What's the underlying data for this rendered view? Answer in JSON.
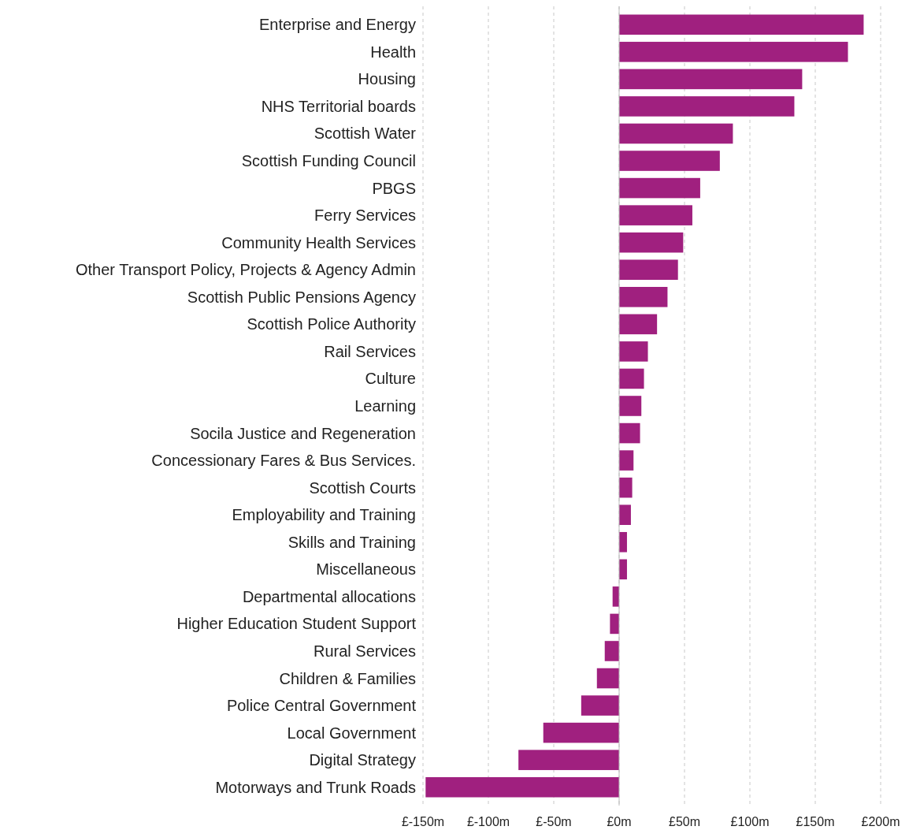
{
  "chart_data": {
    "type": "bar",
    "orientation": "horizontal",
    "categories": [
      "Enterprise and Energy",
      "Health",
      "Housing",
      "NHS Territorial boards",
      "Scottish Water",
      "Scottish Funding Council",
      "PBGS",
      "Ferry Services",
      "Community Health Services",
      "Other Transport Policy, Projects & Agency Admin",
      "Scottish Public Pensions Agency",
      "Scottish Police Authority",
      "Rail Services",
      "Culture",
      "Learning",
      "Socila Justice and Regeneration",
      "Concessionary Fares & Bus Services.",
      "Scottish Courts",
      "Employability and Training",
      "Skills and Training",
      "Miscellaneous",
      "Departmental allocations",
      "Higher Education Student Support",
      "Rural Services",
      "Children & Families",
      "Police Central Government",
      "Local Government",
      "Digital Strategy",
      "Motorways and Trunk Roads"
    ],
    "values": [
      187,
      175,
      140,
      134,
      87,
      77,
      62,
      56,
      49,
      45,
      37,
      29,
      22,
      19,
      17,
      16,
      11,
      10,
      9,
      6,
      6,
      -5,
      -7,
      -11,
      -17,
      -29,
      -58,
      -77,
      -148
    ],
    "color": "#a0207f",
    "xlim": [
      -150,
      200
    ],
    "xticks": [
      {
        "value": -150,
        "label": "£-150m"
      },
      {
        "value": -100,
        "label": "£-100m"
      },
      {
        "value": -50,
        "label": "£-50m"
      },
      {
        "value": 0,
        "label": "£0m"
      },
      {
        "value": 50,
        "label": "£50m"
      },
      {
        "value": 100,
        "label": "£100m"
      },
      {
        "value": 150,
        "label": "£150m"
      },
      {
        "value": 200,
        "label": "£200m"
      }
    ],
    "grid": "x"
  }
}
